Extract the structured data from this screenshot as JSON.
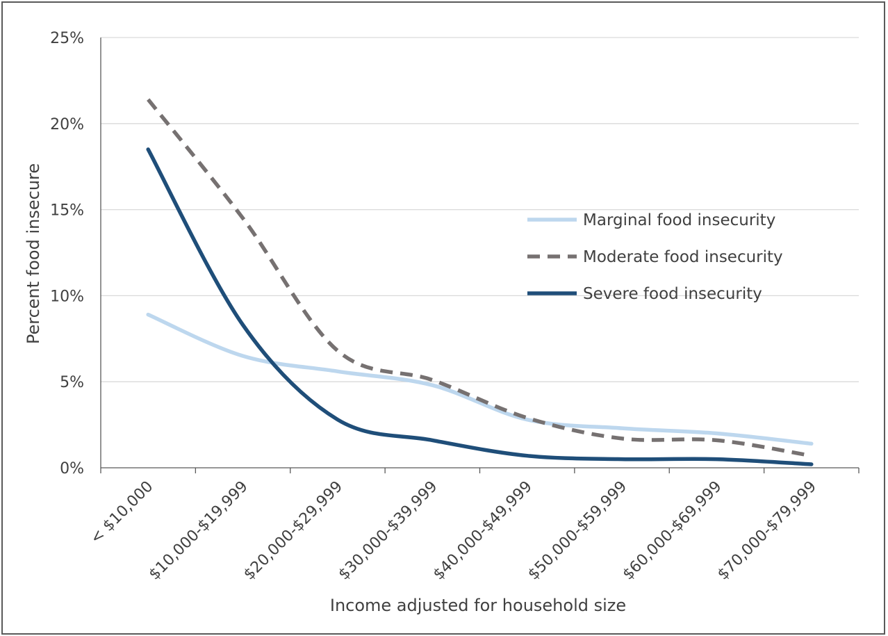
{
  "chart_data": {
    "type": "line",
    "xlabel": "Income adjusted for household size",
    "ylabel": "Percent food insecure",
    "categories": [
      "< $10,000",
      "$10,000-$19,999",
      "$20,000-$29,999",
      "$30,000-$39,999",
      "$40,000-$49,999",
      "$50,000-$59,999",
      "$60,000-$69,999",
      "$70,000-$79,999"
    ],
    "ylim": [
      0,
      25
    ],
    "yticks": [
      0,
      5,
      10,
      15,
      20,
      25
    ],
    "ytick_labels": [
      "0%",
      "5%",
      "10%",
      "15%",
      "20%",
      "25%"
    ],
    "grid": true,
    "legend": "center-right",
    "series": [
      {
        "name": "Marginal food insecurity",
        "values": [
          8.9,
          6.5,
          5.6,
          4.8,
          2.8,
          2.3,
          2.0,
          1.4
        ],
        "color": "#bdd7ee",
        "dash": "solid"
      },
      {
        "name": "Moderate food insecurity",
        "values": [
          21.4,
          14.5,
          6.8,
          5.1,
          2.9,
          1.7,
          1.6,
          0.7
        ],
        "color": "#767171",
        "dash": "dashed"
      },
      {
        "name": "Severe food insecurity",
        "values": [
          18.5,
          8.3,
          2.8,
          1.6,
          0.7,
          0.5,
          0.5,
          0.2
        ],
        "color": "#1f4e79",
        "dash": "solid"
      }
    ]
  }
}
